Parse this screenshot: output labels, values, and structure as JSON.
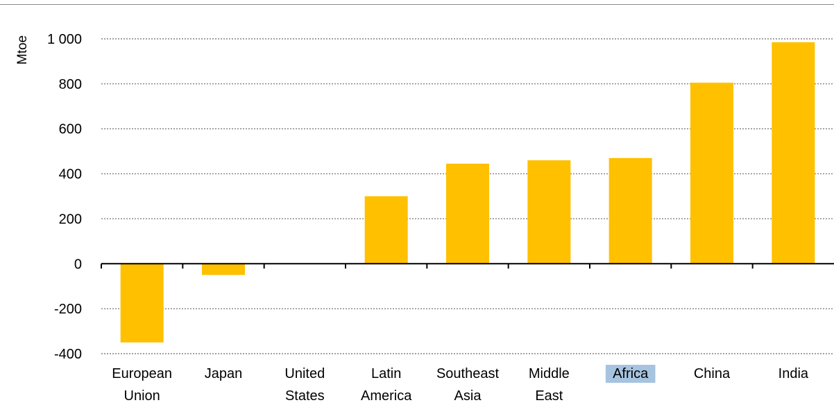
{
  "chart_data": {
    "type": "bar",
    "ylabel": "Mtoe",
    "ylim": [
      -400,
      1000
    ],
    "yticks": [
      1000,
      800,
      600,
      400,
      200,
      0,
      -200,
      -400
    ],
    "ytick_labels": [
      "1 000",
      "800",
      "600",
      "400",
      "200",
      "0",
      "-200",
      "-400"
    ],
    "grid": "horizontal dotted",
    "categories": [
      [
        "European",
        "Union"
      ],
      [
        "Japan"
      ],
      [
        "United",
        "States"
      ],
      [
        "Latin",
        "America"
      ],
      [
        "Southeast",
        "Asia"
      ],
      [
        "Middle",
        "East"
      ],
      [
        "Africa"
      ],
      [
        "China"
      ],
      [
        "India"
      ]
    ],
    "values": [
      -350,
      -50,
      0,
      300,
      445,
      460,
      470,
      805,
      985
    ],
    "highlighted_category": "Africa",
    "colors": {
      "bar": "#FFC000",
      "highlight": "#A6C4DF",
      "grid": "#808080",
      "axis": "#000000"
    }
  }
}
